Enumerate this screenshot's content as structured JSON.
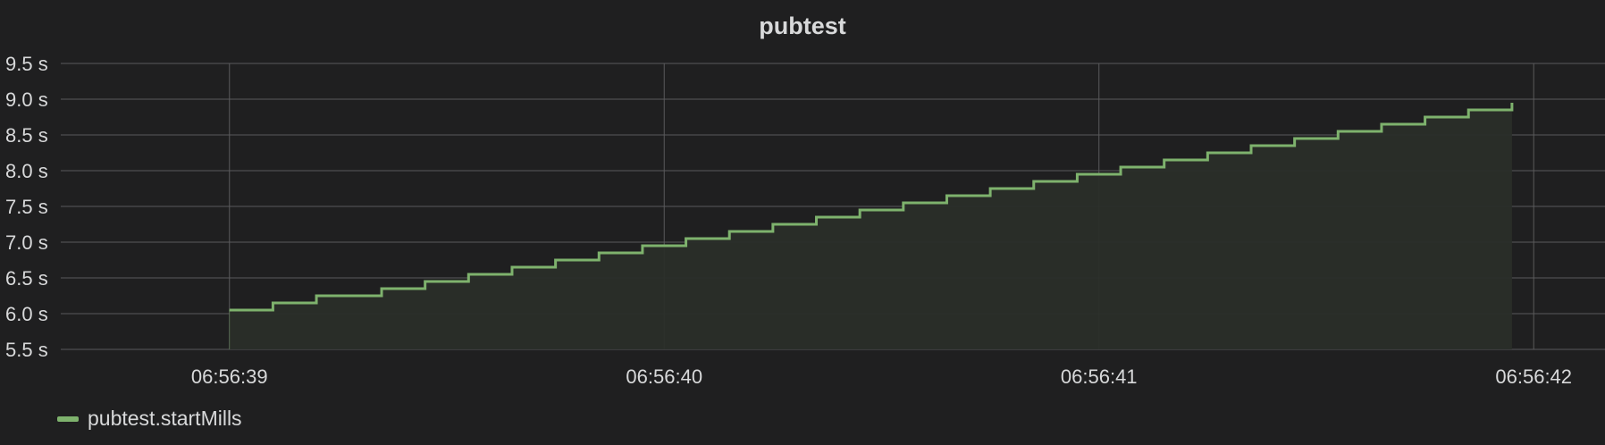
{
  "panel": {
    "title": "pubtest"
  },
  "colors": {
    "background": "#1f1f20",
    "grid": "#5a5a5c",
    "series": "#7eb26d",
    "fill": "#2a2e29",
    "text": "#d8d9da"
  },
  "chart_data": {
    "type": "line",
    "style": "step",
    "title": "pubtest",
    "xlabel": "",
    "ylabel": "",
    "y_unit": "s",
    "ylim": [
      5.5,
      9.5
    ],
    "y_ticks": [
      5.5,
      6.0,
      6.5,
      7.0,
      7.5,
      8.0,
      8.5,
      9.0,
      9.5
    ],
    "y_tick_labels": [
      "5.5 s",
      "6.0 s",
      "6.5 s",
      "7.0 s",
      "7.5 s",
      "8.0 s",
      "8.5 s",
      "9.0 s",
      "9.5 s"
    ],
    "xlim": [
      "06:56:38.612",
      "06:56:42.164"
    ],
    "x_ticks": [
      "06:56:39",
      "06:56:40",
      "06:56:41",
      "06:56:42"
    ],
    "grid": true,
    "fill_below": true,
    "legend_position": "bottom-left",
    "series": [
      {
        "name": "pubtest.startMills",
        "x": [
          "06:56:39.000",
          "06:56:39.100",
          "06:56:39.200",
          "06:56:39.350",
          "06:56:39.450",
          "06:56:39.550",
          "06:56:39.650",
          "06:56:39.750",
          "06:56:39.850",
          "06:56:39.950",
          "06:56:40.050",
          "06:56:40.150",
          "06:56:40.250",
          "06:56:40.350",
          "06:56:40.450",
          "06:56:40.550",
          "06:56:40.650",
          "06:56:40.750",
          "06:56:40.850",
          "06:56:40.950",
          "06:56:41.050",
          "06:56:41.150",
          "06:56:41.250",
          "06:56:41.350",
          "06:56:41.450",
          "06:56:41.550",
          "06:56:41.650",
          "06:56:41.750",
          "06:56:41.850",
          "06:56:41.950"
        ],
        "values": [
          6.05,
          6.15,
          6.25,
          6.35,
          6.45,
          6.55,
          6.65,
          6.75,
          6.85,
          6.95,
          7.05,
          7.15,
          7.25,
          7.35,
          7.45,
          7.55,
          7.65,
          7.75,
          7.85,
          7.95,
          8.05,
          8.15,
          8.25,
          8.35,
          8.45,
          8.55,
          8.65,
          8.75,
          8.85,
          8.95
        ]
      }
    ]
  }
}
